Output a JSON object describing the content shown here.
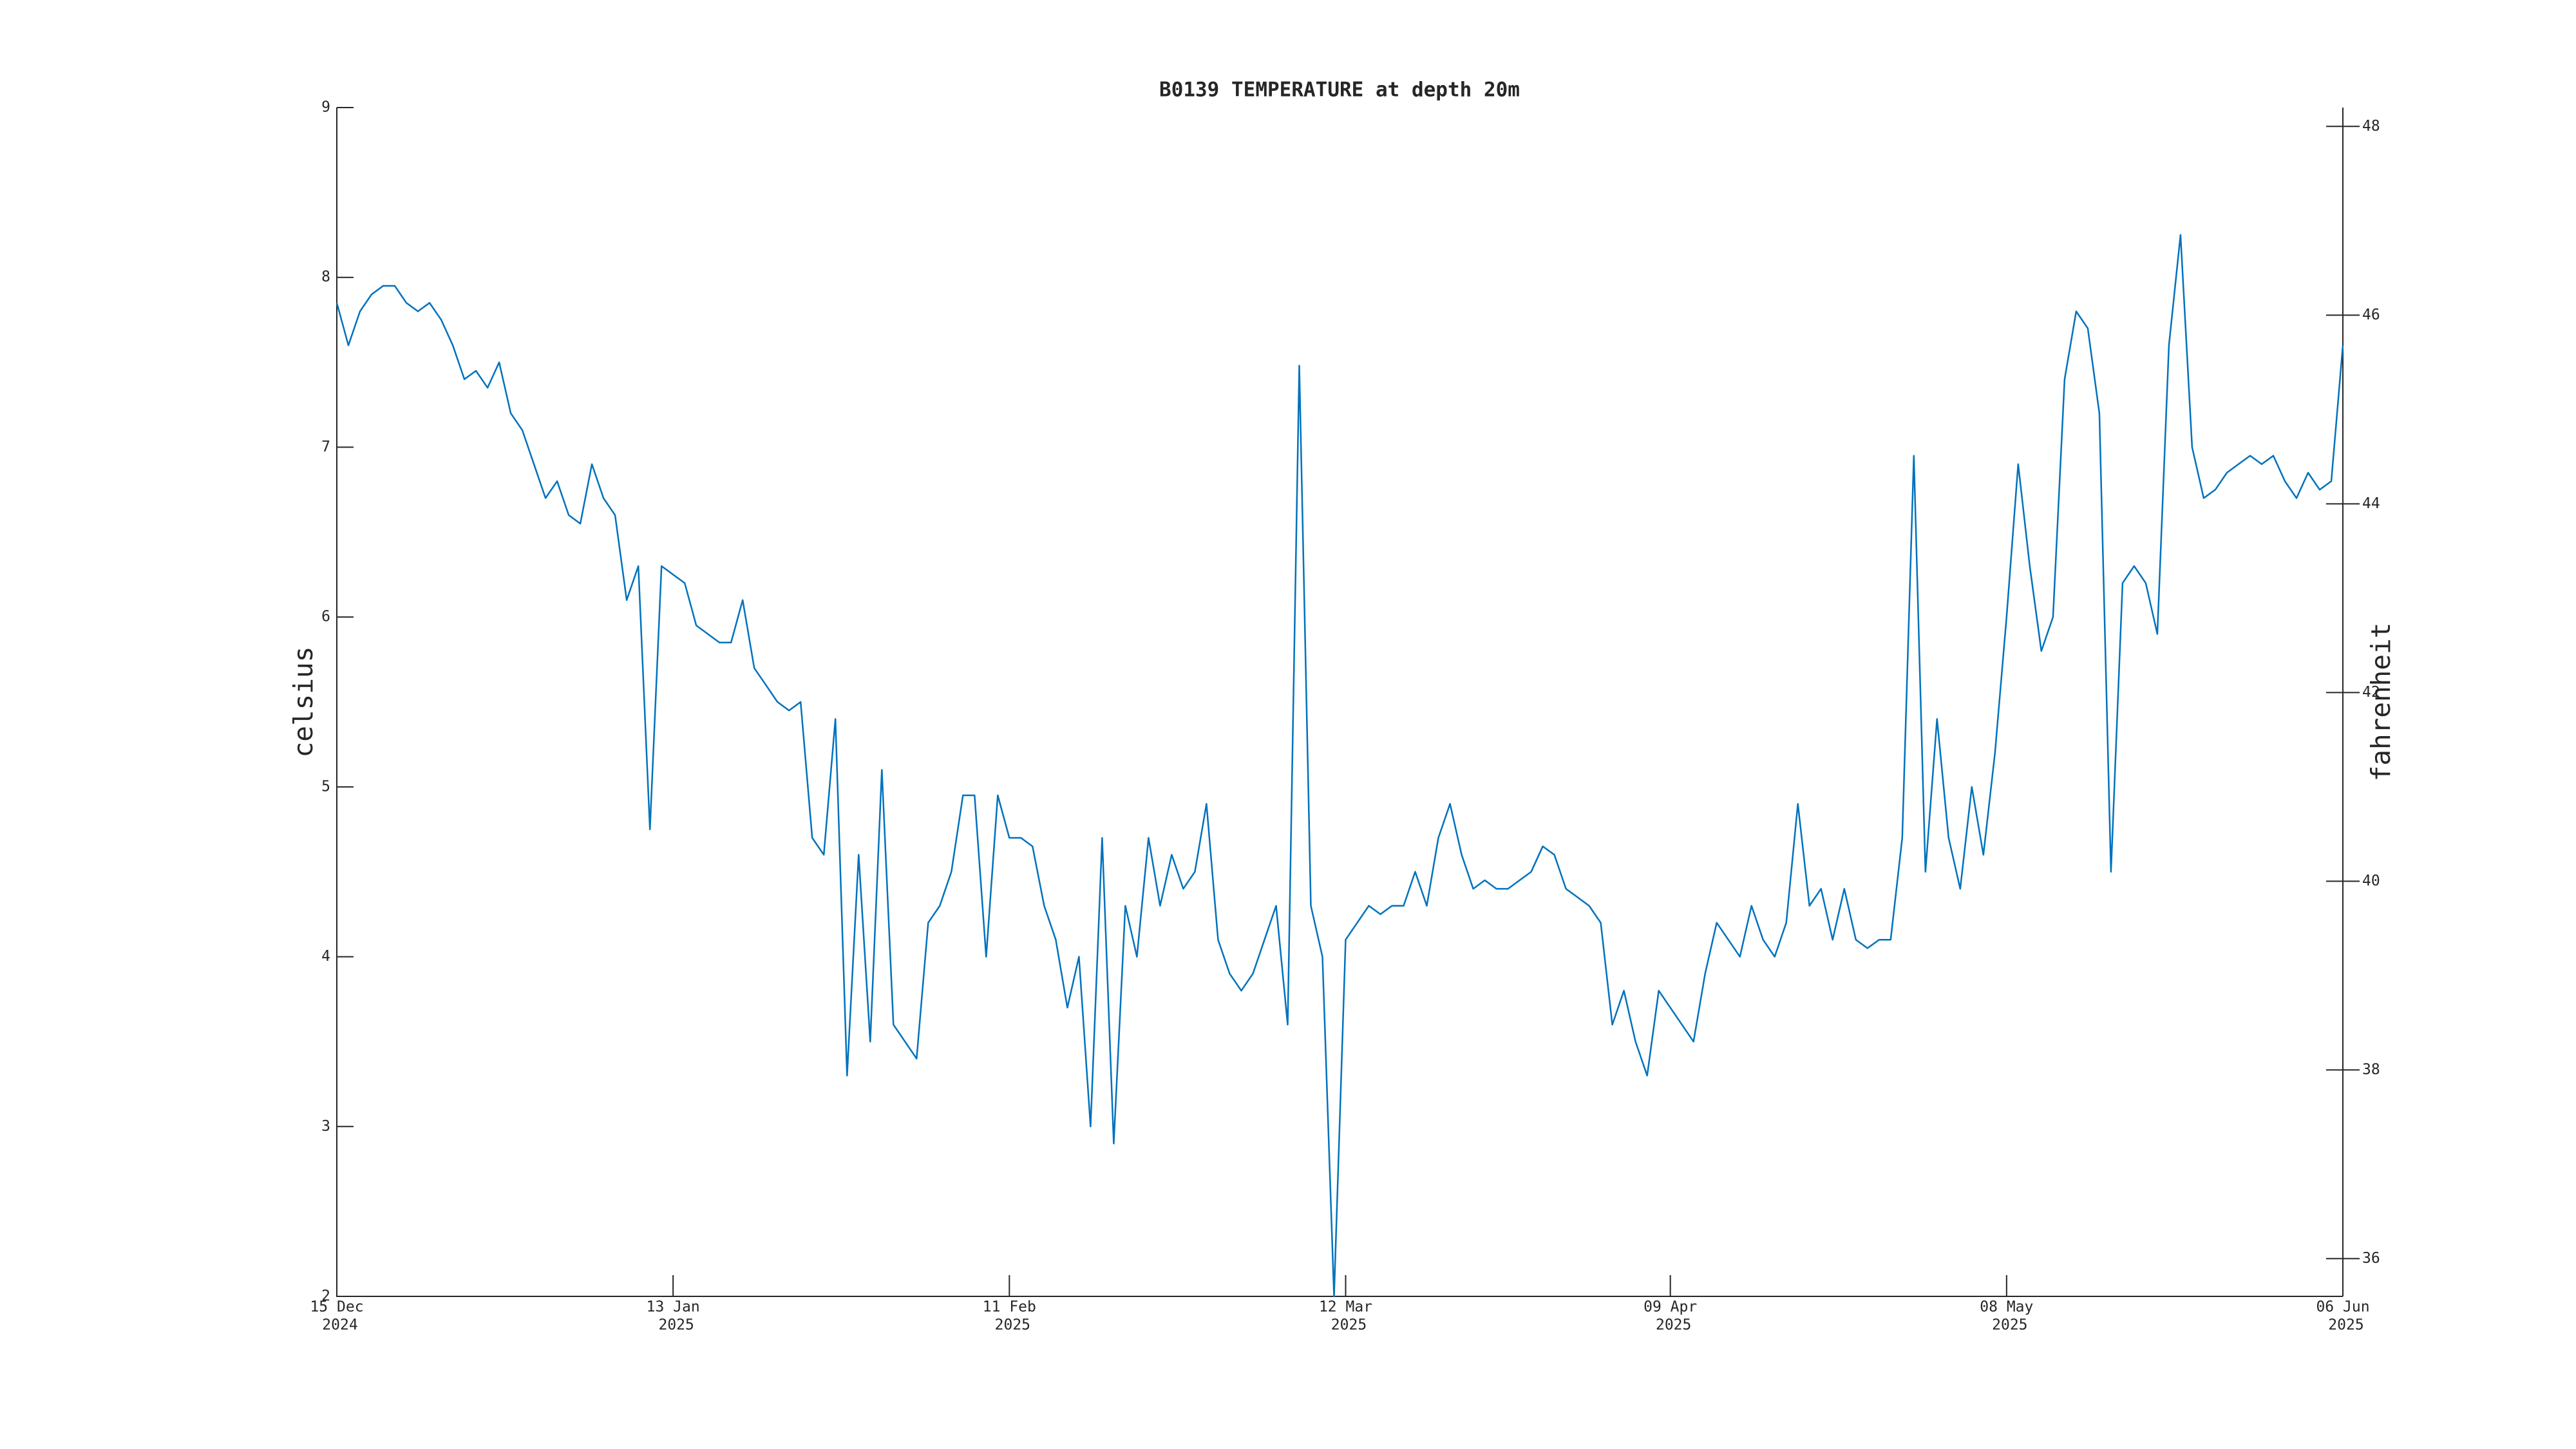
{
  "chart_data": {
    "type": "line",
    "title": "B0139 TEMPERATURE at depth 20m",
    "ylabel": "celsius",
    "y2label": "fahrenheit",
    "color": "#0072bd",
    "x": [
      "2024-12-15",
      "2024-12-16",
      "2024-12-17",
      "2024-12-18",
      "2024-12-19",
      "2024-12-20",
      "2024-12-21",
      "2024-12-22",
      "2024-12-23",
      "2024-12-24",
      "2024-12-25",
      "2024-12-26",
      "2024-12-27",
      "2024-12-28",
      "2024-12-29",
      "2024-12-30",
      "2024-12-31",
      "2025-01-01",
      "2025-01-02",
      "2025-01-03",
      "2025-01-04",
      "2025-01-05",
      "2025-01-06",
      "2025-01-07",
      "2025-01-08",
      "2025-01-09",
      "2025-01-10",
      "2025-01-11",
      "2025-01-12",
      "2025-01-13",
      "2025-01-14",
      "2025-01-15",
      "2025-01-16",
      "2025-01-17",
      "2025-01-18",
      "2025-01-19",
      "2025-01-20",
      "2025-01-21",
      "2025-01-22",
      "2025-01-23",
      "2025-01-24",
      "2025-01-25",
      "2025-01-26",
      "2025-01-27",
      "2025-01-28",
      "2025-01-29",
      "2025-01-30",
      "2025-01-31",
      "2025-02-01",
      "2025-02-02",
      "2025-02-03",
      "2025-02-04",
      "2025-02-05",
      "2025-02-06",
      "2025-02-07",
      "2025-02-08",
      "2025-02-09",
      "2025-02-10",
      "2025-02-11",
      "2025-02-12",
      "2025-02-13",
      "2025-02-14",
      "2025-02-15",
      "2025-02-16",
      "2025-02-17",
      "2025-02-18",
      "2025-02-19",
      "2025-02-20",
      "2025-02-21",
      "2025-02-22",
      "2025-02-23",
      "2025-02-24",
      "2025-02-25",
      "2025-02-26",
      "2025-02-27",
      "2025-02-28",
      "2025-03-01",
      "2025-03-02",
      "2025-03-03",
      "2025-03-04",
      "2025-03-05",
      "2025-03-06",
      "2025-03-07",
      "2025-03-08",
      "2025-03-09",
      "2025-03-10",
      "2025-03-11",
      "2025-03-12",
      "2025-03-13",
      "2025-03-14",
      "2025-03-15",
      "2025-03-16",
      "2025-03-17",
      "2025-03-18",
      "2025-03-19",
      "2025-03-20",
      "2025-03-21",
      "2025-03-22",
      "2025-03-23",
      "2025-03-24",
      "2025-03-25",
      "2025-03-26",
      "2025-03-27",
      "2025-03-28",
      "2025-03-29",
      "2025-03-30",
      "2025-03-31",
      "2025-04-01",
      "2025-04-02",
      "2025-04-03",
      "2025-04-04",
      "2025-04-05",
      "2025-04-06",
      "2025-04-07",
      "2025-04-08",
      "2025-04-09",
      "2025-04-10",
      "2025-04-11",
      "2025-04-12",
      "2025-04-13",
      "2025-04-14",
      "2025-04-15",
      "2025-04-16",
      "2025-04-17",
      "2025-04-18",
      "2025-04-19",
      "2025-04-20",
      "2025-04-21",
      "2025-04-22",
      "2025-04-23",
      "2025-04-24",
      "2025-04-25",
      "2025-04-26",
      "2025-04-27",
      "2025-04-28",
      "2025-04-29",
      "2025-04-30",
      "2025-05-01",
      "2025-05-02",
      "2025-05-03",
      "2025-05-04",
      "2025-05-05",
      "2025-05-06",
      "2025-05-07",
      "2025-05-08",
      "2025-05-09",
      "2025-05-10",
      "2025-05-11",
      "2025-05-12",
      "2025-05-13",
      "2025-05-14",
      "2025-05-15",
      "2025-05-16",
      "2025-05-17",
      "2025-05-18",
      "2025-05-19",
      "2025-05-20",
      "2025-05-21",
      "2025-05-22",
      "2025-05-23",
      "2025-05-24",
      "2025-05-25",
      "2025-05-26",
      "2025-05-27",
      "2025-05-28",
      "2025-05-29",
      "2025-05-30",
      "2025-05-31",
      "2025-06-01",
      "2025-06-02",
      "2025-06-03",
      "2025-06-04",
      "2025-06-05",
      "2025-06-06"
    ],
    "values": [
      7.85,
      7.6,
      7.8,
      7.9,
      7.95,
      7.95,
      7.85,
      7.8,
      7.85,
      7.75,
      7.6,
      7.4,
      7.45,
      7.35,
      7.5,
      7.2,
      7.1,
      6.9,
      6.7,
      6.8,
      6.6,
      6.55,
      6.9,
      6.7,
      6.6,
      6.1,
      6.3,
      4.75,
      6.3,
      6.25,
      6.2,
      5.95,
      5.9,
      5.85,
      5.85,
      6.1,
      5.7,
      5.6,
      5.5,
      5.45,
      5.5,
      4.7,
      4.6,
      5.4,
      3.3,
      4.6,
      3.5,
      5.1,
      3.6,
      3.5,
      3.4,
      4.2,
      4.3,
      4.5,
      4.95,
      4.95,
      4.0,
      4.95,
      4.7,
      4.7,
      4.65,
      4.3,
      4.1,
      3.7,
      4.0,
      3.0,
      4.7,
      2.9,
      4.3,
      4.0,
      4.7,
      4.3,
      4.6,
      4.4,
      4.5,
      4.9,
      4.1,
      3.9,
      3.8,
      3.9,
      4.1,
      4.3,
      3.6,
      7.48,
      4.3,
      4.0,
      2.0,
      4.1,
      4.2,
      4.3,
      4.25,
      4.3,
      4.3,
      4.5,
      4.3,
      4.7,
      4.9,
      4.6,
      4.4,
      4.45,
      4.4,
      4.4,
      4.45,
      4.5,
      4.65,
      4.6,
      4.4,
      4.35,
      4.3,
      4.2,
      3.6,
      3.8,
      3.5,
      3.3,
      3.8,
      3.7,
      3.6,
      3.5,
      3.9,
      4.2,
      4.1,
      4.0,
      4.3,
      4.1,
      4.0,
      4.2,
      4.9,
      4.3,
      4.4,
      4.1,
      4.4,
      4.1,
      4.05,
      4.1,
      4.1,
      4.7,
      6.95,
      4.5,
      5.4,
      4.7,
      4.4,
      5.0,
      4.6,
      5.2,
      6.0,
      6.9,
      6.3,
      5.8,
      6.0,
      7.4,
      7.8,
      7.7,
      7.2,
      4.5,
      6.2,
      6.3,
      6.2,
      5.9,
      7.6,
      8.25,
      7.0,
      6.7,
      6.75,
      6.85,
      6.9,
      6.95,
      6.9,
      6.95,
      6.8,
      6.7,
      6.85,
      6.75,
      6.8,
      7.6
    ],
    "xlim": [
      "2024-12-15",
      "2025-06-06"
    ],
    "xticks": [
      {
        "value": "2024-12-15",
        "label": [
          "15 Dec",
          "2024"
        ]
      },
      {
        "value": "2025-01-13",
        "label": [
          "13 Jan",
          "2025"
        ]
      },
      {
        "value": "2025-02-11",
        "label": [
          "11 Feb",
          "2025"
        ]
      },
      {
        "value": "2025-03-12",
        "label": [
          "12 Mar",
          "2025"
        ]
      },
      {
        "value": "2025-04-09",
        "label": [
          "09 Apr",
          "2025"
        ]
      },
      {
        "value": "2025-05-08",
        "label": [
          "08 May",
          "2025"
        ]
      },
      {
        "value": "2025-06-06",
        "label": [
          "06 Jun",
          "2025"
        ]
      }
    ],
    "ylim": [
      2,
      9
    ],
    "yticks": [
      2,
      3,
      4,
      5,
      6,
      7,
      8,
      9
    ],
    "y2lim": [
      35.6,
      48.2
    ],
    "y2ticks": [
      36,
      38,
      40,
      42,
      44,
      46,
      48
    ]
  }
}
